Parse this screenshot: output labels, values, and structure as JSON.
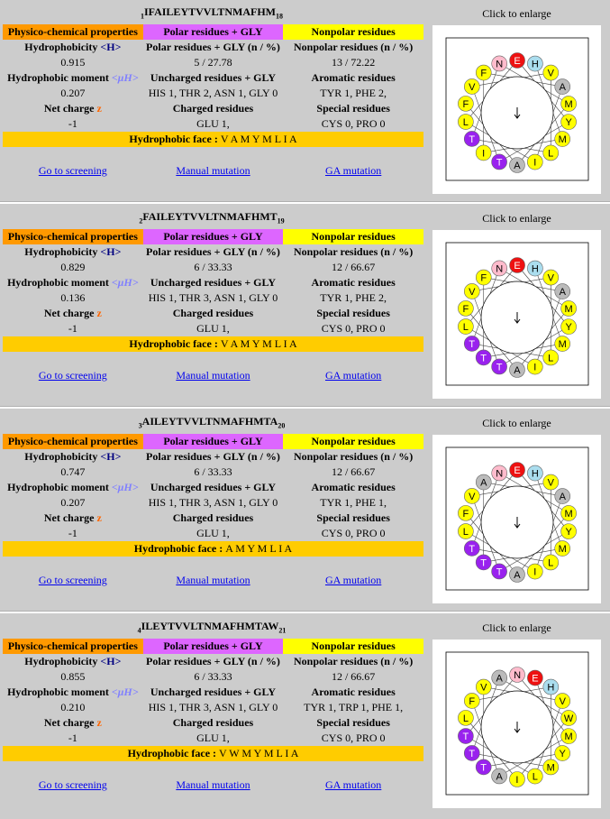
{
  "headers": {
    "physchem": "Physico-chemical properties",
    "polar": "Polar residues + GLY",
    "nonpolar": "Nonpolar residues"
  },
  "labels": {
    "hydrophobicity": "Hydrophobicity",
    "h_symbol": "<H>",
    "moment": "Hydrophobic moment",
    "mu_symbol": "<μH>",
    "charge": "Net charge",
    "z_symbol": "z",
    "polar_count": "Polar residues + GLY (n / %)",
    "nonpolar_count": "Nonpolar residues (n / %)",
    "uncharged": "Uncharged residues + GLY",
    "aromatic": "Aromatic residues",
    "charged": "Charged residues",
    "special": "Special residues",
    "face": "Hydrophobic face : ",
    "screening": "Go to screening",
    "manual": "Manual mutation",
    "ga": "GA mutation",
    "enlarge": "Click to enlarge"
  },
  "peptides": [
    {
      "start": "1",
      "seq": "IFAILEYTVVLTNMAFHM",
      "end": "18",
      "hydrophobicity": "0.915",
      "polar": "5 / 27.78",
      "nonpolar": "13 / 72.22",
      "moment": "0.207",
      "uncharged": "HIS 1, THR 2, ASN 1, GLY 0",
      "aromatic": "TYR 1, PHE 2,",
      "charge": "-1",
      "charged": "GLU 1,",
      "special": "CYS 0, PRO 0",
      "face": "V A M Y M L I A",
      "wheel": [
        {
          "aa": "H",
          "c": "#aaddee"
        },
        {
          "aa": "V",
          "c": "#ffff00"
        },
        {
          "aa": "A",
          "c": "#bbbbbb"
        },
        {
          "aa": "M",
          "c": "#ffff00"
        },
        {
          "aa": "Y",
          "c": "#ffff00"
        },
        {
          "aa": "M",
          "c": "#ffff00"
        },
        {
          "aa": "L",
          "c": "#ffff00"
        },
        {
          "aa": "I",
          "c": "#ffff00"
        },
        {
          "aa": "A",
          "c": "#bbbbbb"
        },
        {
          "aa": "T",
          "c": "#9922ee"
        },
        {
          "aa": "I",
          "c": "#ffff00"
        },
        {
          "aa": "T",
          "c": "#9922ee"
        },
        {
          "aa": "L",
          "c": "#ffff00"
        },
        {
          "aa": "F",
          "c": "#ffff00"
        },
        {
          "aa": "V",
          "c": "#ffff00"
        },
        {
          "aa": "F",
          "c": "#ffff00"
        },
        {
          "aa": "N",
          "c": "#ffbbcc"
        },
        {
          "aa": "E",
          "c": "#ee1111"
        }
      ]
    },
    {
      "start": "2",
      "seq": "FAILEYTVVLTNMAFHMT",
      "end": "19",
      "hydrophobicity": "0.829",
      "polar": "6 / 33.33",
      "nonpolar": "12 / 66.67",
      "moment": "0.136",
      "uncharged": "HIS 1, THR 3, ASN 1, GLY 0",
      "aromatic": "TYR 1, PHE 2,",
      "charge": "-1",
      "charged": "GLU 1,",
      "special": "CYS 0, PRO 0",
      "face": "V A M Y M L I A",
      "wheel": [
        {
          "aa": "H",
          "c": "#aaddee"
        },
        {
          "aa": "V",
          "c": "#ffff00"
        },
        {
          "aa": "A",
          "c": "#bbbbbb"
        },
        {
          "aa": "M",
          "c": "#ffff00"
        },
        {
          "aa": "Y",
          "c": "#ffff00"
        },
        {
          "aa": "M",
          "c": "#ffff00"
        },
        {
          "aa": "L",
          "c": "#ffff00"
        },
        {
          "aa": "I",
          "c": "#ffff00"
        },
        {
          "aa": "A",
          "c": "#bbbbbb"
        },
        {
          "aa": "T",
          "c": "#9922ee"
        },
        {
          "aa": "T",
          "c": "#9922ee"
        },
        {
          "aa": "T",
          "c": "#9922ee"
        },
        {
          "aa": "L",
          "c": "#ffff00"
        },
        {
          "aa": "F",
          "c": "#ffff00"
        },
        {
          "aa": "V",
          "c": "#ffff00"
        },
        {
          "aa": "F",
          "c": "#ffff00"
        },
        {
          "aa": "N",
          "c": "#ffbbcc"
        },
        {
          "aa": "E",
          "c": "#ee1111"
        }
      ]
    },
    {
      "start": "3",
      "seq": "AILEYTVVLTNMAFHMTA",
      "end": "20",
      "hydrophobicity": "0.747",
      "polar": "6 / 33.33",
      "nonpolar": "12 / 66.67",
      "moment": "0.207",
      "uncharged": "HIS 1, THR 3, ASN 1, GLY 0",
      "aromatic": "TYR 1, PHE 1,",
      "charge": "-1",
      "charged": "GLU 1,",
      "special": "CYS 0, PRO 0",
      "face": "A M Y M L I A",
      "wheel": [
        {
          "aa": "H",
          "c": "#aaddee"
        },
        {
          "aa": "V",
          "c": "#ffff00"
        },
        {
          "aa": "A",
          "c": "#bbbbbb"
        },
        {
          "aa": "M",
          "c": "#ffff00"
        },
        {
          "aa": "Y",
          "c": "#ffff00"
        },
        {
          "aa": "M",
          "c": "#ffff00"
        },
        {
          "aa": "L",
          "c": "#ffff00"
        },
        {
          "aa": "I",
          "c": "#ffff00"
        },
        {
          "aa": "A",
          "c": "#bbbbbb"
        },
        {
          "aa": "T",
          "c": "#9922ee"
        },
        {
          "aa": "T",
          "c": "#9922ee"
        },
        {
          "aa": "T",
          "c": "#9922ee"
        },
        {
          "aa": "L",
          "c": "#ffff00"
        },
        {
          "aa": "F",
          "c": "#ffff00"
        },
        {
          "aa": "V",
          "c": "#ffff00"
        },
        {
          "aa": "A",
          "c": "#bbbbbb"
        },
        {
          "aa": "N",
          "c": "#ffbbcc"
        },
        {
          "aa": "E",
          "c": "#ee1111"
        }
      ]
    },
    {
      "start": "4",
      "seq": "ILEYTVVLTNMAFHMTAW",
      "end": "21",
      "hydrophobicity": "0.855",
      "polar": "6 / 33.33",
      "nonpolar": "12 / 66.67",
      "moment": "0.210",
      "uncharged": "HIS 1, THR 3, ASN 1, GLY 0",
      "aromatic": "TYR 1, TRP 1, PHE 1,",
      "charge": "-1",
      "charged": "GLU 1,",
      "special": "CYS 0, PRO 0",
      "face": "V W M Y M L I A",
      "wheel": [
        {
          "aa": "E",
          "c": "#ee1111"
        },
        {
          "aa": "H",
          "c": "#aaddee"
        },
        {
          "aa": "V",
          "c": "#ffff00"
        },
        {
          "aa": "W",
          "c": "#ffff00"
        },
        {
          "aa": "M",
          "c": "#ffff00"
        },
        {
          "aa": "Y",
          "c": "#ffff00"
        },
        {
          "aa": "M",
          "c": "#ffff00"
        },
        {
          "aa": "L",
          "c": "#ffff00"
        },
        {
          "aa": "I",
          "c": "#ffff00"
        },
        {
          "aa": "A",
          "c": "#bbbbbb"
        },
        {
          "aa": "T",
          "c": "#9922ee"
        },
        {
          "aa": "T",
          "c": "#9922ee"
        },
        {
          "aa": "T",
          "c": "#9922ee"
        },
        {
          "aa": "L",
          "c": "#ffff00"
        },
        {
          "aa": "F",
          "c": "#ffff00"
        },
        {
          "aa": "V",
          "c": "#ffff00"
        },
        {
          "aa": "A",
          "c": "#bbbbbb"
        },
        {
          "aa": "N",
          "c": "#ffbbcc"
        }
      ]
    }
  ]
}
